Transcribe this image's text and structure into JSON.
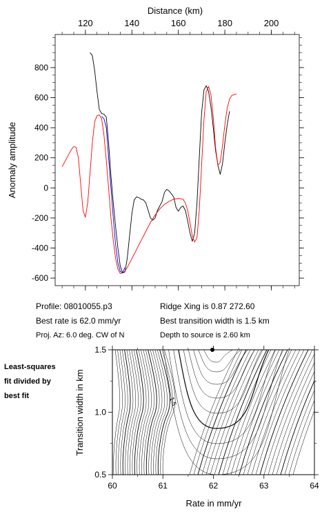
{
  "top_chart": {
    "xlabel": "Distance (km)",
    "ylabel": "Anomaly amplitude",
    "x_ticks": [
      120,
      140,
      160,
      180,
      200
    ],
    "y_ticks": [
      800,
      600,
      400,
      200,
      0,
      -200,
      -400,
      -600
    ],
    "xlim": [
      107,
      212
    ],
    "ylim": [
      -650,
      1020
    ],
    "series_colors": {
      "observed": "#000000",
      "model": "#ff0000",
      "fit": "#0000ff"
    }
  },
  "info": {
    "profile": "Profile: 08010055.p3",
    "ridge": "Ridge Xing is 0.87 272.60",
    "best_rate": "Best rate is 62.0 mm/yr",
    "best_width": "Best transition width is 1.5 km",
    "proj": "Proj. Az: 6.0 deg. CW of N",
    "depth": "Depth to source is   2.60 km"
  },
  "side_note": [
    "Least-squares",
    "fit divided by",
    "best fit"
  ],
  "bottom_chart": {
    "xlabel": "Rate in mm/yr",
    "ylabel": "Transition width in km",
    "x_ticks": [
      "60",
      "61",
      "62",
      "63",
      "64"
    ],
    "y_ticks": [
      "1.5",
      "1.0",
      "0.5"
    ],
    "contour_label": "1.5",
    "best_point": {
      "rate": 62.0,
      "width": 1.5
    }
  },
  "chart_data": [
    {
      "type": "line",
      "xlabel": "Distance (km)",
      "ylabel": "Anomaly amplitude",
      "xlim": [
        107,
        212
      ],
      "ylim": [
        -650,
        1020
      ],
      "grid": false,
      "series": [
        {
          "color": "#000000",
          "points": [
            [
              122,
              900
            ],
            [
              123,
              880
            ],
            [
              124,
              780
            ],
            [
              125,
              640
            ],
            [
              126,
              520
            ],
            [
              127,
              495
            ],
            [
              128,
              490
            ],
            [
              129,
              470
            ],
            [
              130,
              300
            ],
            [
              131,
              80
            ],
            [
              132,
              -100
            ],
            [
              133,
              -260
            ],
            [
              134,
              -400
            ],
            [
              135,
              -520
            ],
            [
              136,
              -565
            ],
            [
              137,
              -560
            ],
            [
              138,
              -470
            ],
            [
              139,
              -320
            ],
            [
              140,
              -170
            ],
            [
              141,
              -80
            ],
            [
              142,
              -60
            ],
            [
              143,
              -65
            ],
            [
              144,
              -75
            ],
            [
              145,
              -80
            ],
            [
              146,
              -100
            ],
            [
              147,
              -150
            ],
            [
              148,
              -200
            ],
            [
              149,
              -215
            ],
            [
              150,
              -200
            ],
            [
              151,
              -150
            ],
            [
              152,
              -120
            ],
            [
              153,
              -90
            ],
            [
              154,
              -30
            ],
            [
              155,
              -10
            ],
            [
              156,
              -20
            ],
            [
              157,
              -40
            ],
            [
              158,
              -60
            ],
            [
              159,
              -130
            ],
            [
              160,
              -155
            ],
            [
              161,
              -130
            ],
            [
              162,
              -120
            ],
            [
              163,
              -150
            ],
            [
              164,
              -220
            ],
            [
              165,
              -300
            ],
            [
              166,
              -355
            ],
            [
              167,
              -300
            ],
            [
              168,
              -100
            ],
            [
              169,
              200
            ],
            [
              170,
              500
            ],
            [
              171,
              650
            ],
            [
              172,
              680
            ],
            [
              173,
              640
            ],
            [
              174,
              540
            ],
            [
              175,
              400
            ],
            [
              176,
              250
            ],
            [
              177,
              150
            ],
            [
              178,
              90
            ],
            [
              179,
              160
            ],
            [
              180,
              300
            ],
            [
              181,
              420
            ],
            [
              182,
              510
            ]
          ]
        },
        {
          "color": "#ff0000",
          "points": [
            [
              110,
              140
            ],
            [
              112,
              200
            ],
            [
              114,
              255
            ],
            [
              115,
              275
            ],
            [
              116,
              270
            ],
            [
              117,
              200
            ],
            [
              118,
              20
            ],
            [
              119,
              -150
            ],
            [
              120,
              -195
            ],
            [
              121,
              -100
            ],
            [
              122,
              100
            ],
            [
              123,
              300
            ],
            [
              124,
              440
            ],
            [
              125,
              480
            ],
            [
              126,
              485
            ],
            [
              127,
              460
            ],
            [
              128,
              350
            ],
            [
              129,
              180
            ],
            [
              130,
              0
            ],
            [
              131,
              -200
            ],
            [
              132,
              -350
            ],
            [
              133,
              -470
            ],
            [
              134,
              -540
            ],
            [
              135,
              -570
            ],
            [
              136,
              -565
            ],
            [
              137,
              -555
            ],
            [
              138,
              -530
            ],
            [
              140,
              -470
            ],
            [
              142,
              -410
            ],
            [
              144,
              -350
            ],
            [
              146,
              -290
            ],
            [
              148,
              -230
            ],
            [
              150,
              -180
            ],
            [
              152,
              -140
            ],
            [
              154,
              -110
            ],
            [
              156,
              -90
            ],
            [
              158,
              -75
            ],
            [
              160,
              -70
            ],
            [
              162,
              -75
            ],
            [
              163,
              -100
            ],
            [
              164,
              -150
            ],
            [
              165,
              -230
            ],
            [
              166,
              -320
            ],
            [
              167,
              -360
            ],
            [
              168,
              -330
            ],
            [
              169,
              -150
            ],
            [
              170,
              150
            ],
            [
              171,
              450
            ],
            [
              172,
              640
            ],
            [
              173,
              675
            ],
            [
              174,
              620
            ],
            [
              175,
              470
            ],
            [
              176,
              270
            ],
            [
              177,
              150
            ],
            [
              178,
              170
            ],
            [
              179,
              280
            ],
            [
              180,
              420
            ],
            [
              181,
              530
            ],
            [
              182,
              590
            ],
            [
              183,
              615
            ],
            [
              184,
              620
            ],
            [
              185,
              625
            ]
          ]
        },
        {
          "color": "#0000ff",
          "points": [
            [
              127,
              475
            ],
            [
              128,
              460
            ],
            [
              129,
              400
            ],
            [
              130,
              200
            ],
            [
              131,
              0
            ],
            [
              132,
              -200
            ],
            [
              133,
              -380
            ],
            [
              134,
              -500
            ],
            [
              135,
              -555
            ],
            [
              136,
              -565
            ],
            [
              137,
              -530
            ]
          ]
        }
      ]
    },
    {
      "type": "contour",
      "xlabel": "Rate in mm/yr",
      "ylabel": "Transition width in km",
      "xlim": [
        60,
        64
      ],
      "ylim": [
        0.5,
        1.5
      ],
      "x_ticks": [
        60,
        61,
        62,
        63,
        64
      ],
      "y_ticks": [
        0.5,
        1.0,
        1.5
      ],
      "minimum": {
        "rate": 62.0,
        "width": 1.5
      },
      "contour_label": "1.5"
    }
  ]
}
